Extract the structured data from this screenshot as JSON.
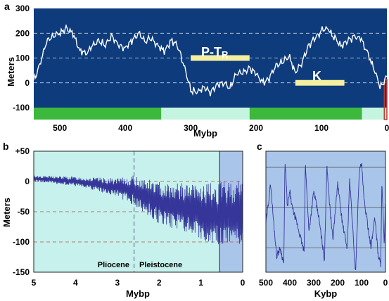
{
  "figure": {
    "panels": [
      "a",
      "b",
      "c"
    ]
  },
  "colors": {
    "panel_a_bg": "#0d3b7c",
    "panel_a_line": "#ffffff",
    "panel_a_grid": "#ffffff",
    "event_bar": "#f5efa0",
    "band_dark": "#3cb93c",
    "band_light": "#c5f5e0",
    "marker_red": "#c0392b",
    "panel_b_bg": "#c7f1ec",
    "panel_b_highlight": "#a9c6ea",
    "panel_b_grid": "#b0504b",
    "panel_b_line": "#35359a",
    "panel_c_bg": "#a9c6ea",
    "panel_c_grid": "#555555",
    "panel_c_line": "#35359a"
  },
  "chart_data": [
    {
      "panel": "a",
      "type": "line",
      "xlabel": "Mybp",
      "ylabel": "Meters",
      "xlim": [
        540,
        0
      ],
      "ylim": [
        -100,
        300
      ],
      "xticks": [
        "500",
        "400",
        "300",
        "200",
        "100",
        "0"
      ],
      "yticks": [
        "300",
        "200",
        "100",
        "0",
        "-100"
      ],
      "grid": "horizontal dashed at 0, 100, 200",
      "series": [
        {
          "x": [
            540,
            530,
            520,
            510,
            500,
            490,
            480,
            470,
            460,
            450,
            440,
            430,
            420,
            410,
            400,
            390,
            380,
            370,
            360,
            350,
            340,
            330,
            320,
            310,
            300,
            290,
            280,
            270,
            260,
            250,
            240,
            230,
            220,
            210,
            200,
            190,
            180,
            170,
            160,
            150,
            140,
            130,
            120,
            110,
            100,
            90,
            80,
            70,
            60,
            50,
            40,
            30,
            20,
            10,
            0
          ],
          "y": [
            10,
            80,
            170,
            190,
            200,
            220,
            200,
            130,
            120,
            150,
            170,
            150,
            190,
            150,
            140,
            170,
            200,
            170,
            180,
            150,
            130,
            170,
            150,
            70,
            -30,
            -40,
            -20,
            -40,
            -10,
            0,
            -20,
            40,
            40,
            60,
            40,
            0,
            20,
            70,
            80,
            110,
            40,
            80,
            150,
            180,
            210,
            220,
            180,
            150,
            170,
            190,
            180,
            120,
            60,
            -20,
            30
          ]
        }
      ],
      "annotations": [
        {
          "label": "P-T",
          "subscript": "R",
          "x_range": [
            300,
            210
          ],
          "y": 100
        },
        {
          "label": "K",
          "x_range": [
            140,
            65
          ],
          "y": 0
        }
      ],
      "bands": [
        {
          "x_range": [
            540,
            345
          ],
          "shade": "dark"
        },
        {
          "x_range": [
            345,
            210
          ],
          "shade": "light"
        },
        {
          "x_range": [
            210,
            38
          ],
          "shade": "dark"
        },
        {
          "x_range": [
            38,
            4
          ],
          "shade": "light"
        },
        {
          "x_range": [
            4,
            0
          ],
          "shade": "marker"
        }
      ]
    },
    {
      "panel": "b",
      "type": "line",
      "xlabel": "Mybp",
      "ylabel": "Meters",
      "xlim": [
        5,
        0
      ],
      "ylim": [
        -150,
        50
      ],
      "xticks": [
        "5",
        "4",
        "3",
        "2",
        "1",
        "0"
      ],
      "yticks": [
        "+50",
        "0",
        "-50",
        "-100",
        "-150"
      ],
      "grid": "horizontal dashed at 0, -50, -100",
      "divider_x": 2.6,
      "highlight_x_range": [
        0.55,
        0
      ],
      "epoch_labels": [
        "Pliocene",
        "Pleistocene"
      ],
      "series": [
        {
          "trend_x": [
            5,
            4,
            3,
            2.6,
            2,
            1,
            0.5,
            0
          ],
          "trend_y": [
            5,
            0,
            -10,
            -15,
            -35,
            -50,
            -55,
            -50
          ],
          "amplitude": [
            5,
            8,
            15,
            25,
            35,
            45,
            55,
            55
          ]
        }
      ]
    },
    {
      "panel": "c",
      "type": "line",
      "xlabel": "Kybp",
      "xlim": [
        500,
        0
      ],
      "ylim": [
        -130,
        20
      ],
      "xticks": [
        "500",
        "400",
        "300",
        "200",
        "100",
        "0"
      ],
      "grid": "horizontal solid at 0, -50, -100",
      "series": [
        {
          "x": [
            500,
            480,
            470,
            455,
            440,
            425,
            420,
            410,
            400,
            390,
            370,
            340,
            335,
            320,
            300,
            280,
            255,
            245,
            235,
            220,
            200,
            180,
            160,
            150,
            140,
            130,
            125,
            110,
            100,
            90,
            80,
            70,
            60,
            45,
            30,
            20,
            15,
            10,
            5,
            0
          ],
          "y": [
            -70,
            -20,
            -60,
            -110,
            -100,
            -120,
            10,
            -50,
            -30,
            -50,
            -70,
            -105,
            5,
            -80,
            -30,
            -60,
            -115,
            5,
            -40,
            -90,
            -20,
            -70,
            -100,
            -15,
            -60,
            -110,
            -130,
            -5,
            5,
            -40,
            -60,
            -80,
            -100,
            -60,
            -110,
            -120,
            -20,
            -60,
            -100,
            -40
          ]
        }
      ]
    }
  ]
}
